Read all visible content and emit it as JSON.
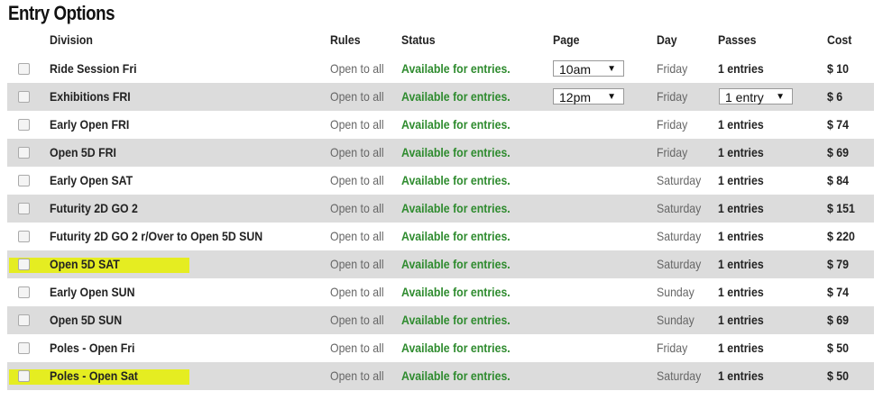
{
  "title": "Entry Options",
  "headers": {
    "division": "Division",
    "rules": "Rules",
    "status": "Status",
    "page": "Page",
    "day": "Day",
    "passes": "Passes",
    "cost": "Cost"
  },
  "highlight_color": "#e6f000",
  "status_color": "#2e8b2e",
  "rows": [
    {
      "division": "Ride Session Fri",
      "rules": "Open to all",
      "status": "Available for entries.",
      "page": "10am",
      "day": "Friday",
      "passes": "1 entries",
      "cost": "$ 10"
    },
    {
      "division": "Exhibitions FRI",
      "rules": "Open to all",
      "status": "Available for entries.",
      "page": "12pm",
      "day": "Friday",
      "passes": "1 entry",
      "cost": "$ 6"
    },
    {
      "division": "Early Open FRI",
      "rules": "Open to all",
      "status": "Available for entries.",
      "day": "Friday",
      "passes": "1 entries",
      "cost": "$ 74"
    },
    {
      "division": "Open 5D FRI",
      "rules": "Open to all",
      "status": "Available for entries.",
      "day": "Friday",
      "passes": "1 entries",
      "cost": "$ 69"
    },
    {
      "division": "Early Open SAT",
      "rules": "Open to all",
      "status": "Available for entries.",
      "day": "Saturday",
      "passes": "1 entries",
      "cost": "$ 84"
    },
    {
      "division": "Futurity 2D GO 2",
      "rules": "Open to all",
      "status": "Available for entries.",
      "day": "Saturday",
      "passes": "1 entries",
      "cost": "$ 151"
    },
    {
      "division": "Futurity 2D GO 2 r/Over to Open 5D SUN",
      "rules": "Open to all",
      "status": "Available for entries.",
      "day": "Saturday",
      "passes": "1 entries",
      "cost": "$ 220"
    },
    {
      "division": "Open 5D SAT",
      "rules": "Open to all",
      "status": "Available for entries.",
      "day": "Saturday",
      "passes": "1 entries",
      "cost": "$ 79",
      "highlighted": true
    },
    {
      "division": "Early Open SUN",
      "rules": "Open to all",
      "status": "Available for entries.",
      "day": "Sunday",
      "passes": "1 entries",
      "cost": "$ 74"
    },
    {
      "division": "Open 5D SUN",
      "rules": "Open to all",
      "status": "Available for entries.",
      "day": "Sunday",
      "passes": "1 entries",
      "cost": "$ 69"
    },
    {
      "division": "Poles - Open Fri",
      "rules": "Open to all",
      "status": "Available for entries.",
      "day": "Friday",
      "passes": "1 entries",
      "cost": "$ 50"
    },
    {
      "division": "Poles - Open Sat",
      "rules": "Open to all",
      "status": "Available for entries.",
      "day": "Saturday",
      "passes": "1 entries",
      "cost": "$ 50",
      "highlighted": true
    }
  ]
}
